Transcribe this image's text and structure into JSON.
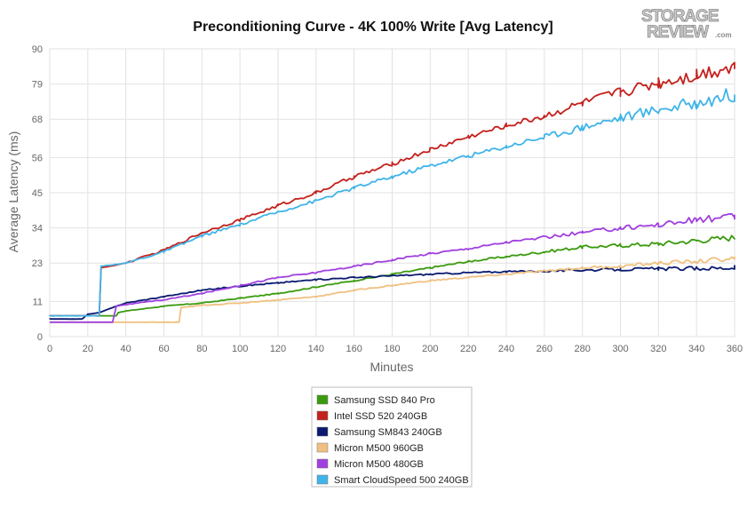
{
  "logo": {
    "line1": "STORAGE",
    "line2": "REVIEW",
    "suffix": ".com"
  },
  "chart_data": {
    "type": "line",
    "title": "Preconditioning Curve - 4K 100% Write [Avg Latency]",
    "xlabel": "Minutes",
    "ylabel": "Average Latency (ms)",
    "xlim": [
      0,
      360
    ],
    "ylim": [
      0,
      90
    ],
    "x_ticks": [
      0,
      20,
      40,
      60,
      80,
      100,
      120,
      140,
      160,
      180,
      200,
      220,
      240,
      260,
      280,
      300,
      320,
      340,
      360
    ],
    "y_ticks": [
      0,
      11,
      23,
      34,
      45,
      56,
      68,
      79,
      90
    ],
    "grid": true,
    "legend_position": "bottom-center",
    "series": [
      {
        "name": "Samsung SSD 840 Pro",
        "color": "#3a9a0e",
        "points": [
          [
            0,
            6.5
          ],
          [
            20,
            6.5
          ],
          [
            35,
            6.5
          ],
          [
            36,
            7.5
          ],
          [
            40,
            8.0
          ],
          [
            60,
            9.5
          ],
          [
            80,
            10.5
          ],
          [
            100,
            12.0
          ],
          [
            120,
            13.5
          ],
          [
            140,
            15.5
          ],
          [
            160,
            17.5
          ],
          [
            180,
            19.5
          ],
          [
            200,
            21.5
          ],
          [
            220,
            23.5
          ],
          [
            240,
            25.0
          ],
          [
            260,
            26.5
          ],
          [
            280,
            28.0
          ],
          [
            300,
            28.5
          ],
          [
            320,
            29.0
          ],
          [
            340,
            30.0
          ],
          [
            360,
            31.0
          ]
        ]
      },
      {
        "name": "Intel SSD 520 240GB",
        "color": "#c4201c",
        "points": [
          [
            0,
            6.5
          ],
          [
            26,
            6.5
          ],
          [
            27,
            21.5
          ],
          [
            40,
            23.0
          ],
          [
            60,
            27.0
          ],
          [
            80,
            32.5
          ],
          [
            100,
            36.5
          ],
          [
            120,
            41.0
          ],
          [
            140,
            45.0
          ],
          [
            160,
            50.0
          ],
          [
            180,
            54.0
          ],
          [
            200,
            58.5
          ],
          [
            220,
            62.5
          ],
          [
            240,
            66.0
          ],
          [
            260,
            69.0
          ],
          [
            280,
            73.0
          ],
          [
            300,
            76.5
          ],
          [
            320,
            79.5
          ],
          [
            340,
            82.0
          ],
          [
            360,
            85.0
          ]
        ]
      },
      {
        "name": "Samsung SM843 240GB",
        "color": "#0a1a70",
        "points": [
          [
            0,
            5.5
          ],
          [
            17,
            5.5
          ],
          [
            20,
            7.0
          ],
          [
            26,
            7.5
          ],
          [
            35,
            9.5
          ],
          [
            40,
            10.5
          ],
          [
            60,
            12.5
          ],
          [
            80,
            14.5
          ],
          [
            100,
            15.8
          ],
          [
            120,
            16.8
          ],
          [
            140,
            17.8
          ],
          [
            160,
            18.5
          ],
          [
            180,
            19.0
          ],
          [
            200,
            19.5
          ],
          [
            220,
            20.0
          ],
          [
            240,
            20.3
          ],
          [
            260,
            20.5
          ],
          [
            280,
            20.8
          ],
          [
            300,
            21.0
          ],
          [
            320,
            21.2
          ],
          [
            340,
            21.3
          ],
          [
            360,
            21.5
          ]
        ]
      },
      {
        "name": "Micron M500 960GB",
        "color": "#f0c080",
        "points": [
          [
            0,
            4.5
          ],
          [
            68,
            4.5
          ],
          [
            69,
            9.0
          ],
          [
            80,
            9.8
          ],
          [
            100,
            10.5
          ],
          [
            120,
            11.5
          ],
          [
            140,
            12.5
          ],
          [
            160,
            14.5
          ],
          [
            180,
            16.0
          ],
          [
            200,
            17.5
          ],
          [
            220,
            18.5
          ],
          [
            240,
            19.5
          ],
          [
            260,
            20.5
          ],
          [
            280,
            21.5
          ],
          [
            300,
            22.0
          ],
          [
            320,
            23.0
          ],
          [
            340,
            23.5
          ],
          [
            360,
            24.5
          ]
        ]
      },
      {
        "name": "Micron M500 480GB",
        "color": "#a040e0",
        "points": [
          [
            0,
            4.5
          ],
          [
            33,
            4.5
          ],
          [
            35,
            9.5
          ],
          [
            40,
            10.0
          ],
          [
            60,
            11.5
          ],
          [
            80,
            13.5
          ],
          [
            100,
            16.0
          ],
          [
            120,
            18.5
          ],
          [
            140,
            20.0
          ],
          [
            160,
            22.0
          ],
          [
            180,
            24.0
          ],
          [
            200,
            26.0
          ],
          [
            220,
            27.5
          ],
          [
            240,
            29.5
          ],
          [
            260,
            31.0
          ],
          [
            280,
            32.5
          ],
          [
            300,
            34.0
          ],
          [
            320,
            35.0
          ],
          [
            340,
            36.5
          ],
          [
            360,
            37.5
          ]
        ]
      },
      {
        "name": "Smart CloudSpeed 500 240GB",
        "color": "#40b4e8",
        "points": [
          [
            0,
            6.5
          ],
          [
            26,
            6.5
          ],
          [
            27,
            22.0
          ],
          [
            40,
            23.0
          ],
          [
            60,
            26.5
          ],
          [
            80,
            31.5
          ],
          [
            100,
            35.0
          ],
          [
            120,
            39.0
          ],
          [
            140,
            42.5
          ],
          [
            160,
            46.5
          ],
          [
            180,
            50.0
          ],
          [
            200,
            53.5
          ],
          [
            220,
            56.5
          ],
          [
            240,
            59.5
          ],
          [
            260,
            62.5
          ],
          [
            280,
            65.5
          ],
          [
            300,
            68.5
          ],
          [
            320,
            71.0
          ],
          [
            340,
            73.0
          ],
          [
            360,
            76.0
          ]
        ]
      }
    ]
  }
}
